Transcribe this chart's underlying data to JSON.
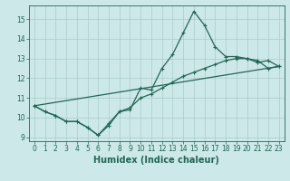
{
  "xlabel": "Humidex (Indice chaleur)",
  "bg_color": "#cce8e8",
  "grid_color": "#aacccc",
  "line_color": "#226655",
  "xlim": [
    -0.5,
    23.5
  ],
  "ylim": [
    8.8,
    15.7
  ],
  "yticks": [
    9,
    10,
    11,
    12,
    13,
    14,
    15
  ],
  "xticks": [
    0,
    1,
    2,
    3,
    4,
    5,
    6,
    7,
    8,
    9,
    10,
    11,
    12,
    13,
    14,
    15,
    16,
    17,
    18,
    19,
    20,
    21,
    22,
    23
  ],
  "series1_x": [
    0,
    1,
    2,
    3,
    4,
    5,
    6,
    7,
    8,
    9,
    10,
    11,
    12,
    13,
    14,
    15,
    16,
    17,
    18,
    19,
    20,
    21,
    22,
    23
  ],
  "series1_y": [
    10.6,
    10.3,
    10.1,
    9.8,
    9.8,
    9.5,
    9.1,
    9.6,
    10.3,
    10.4,
    11.5,
    11.4,
    12.5,
    13.2,
    14.3,
    15.4,
    14.7,
    13.6,
    13.1,
    13.1,
    13.0,
    12.8,
    12.9,
    12.6
  ],
  "series2_x": [
    0,
    1,
    2,
    3,
    4,
    5,
    6,
    7,
    8,
    9,
    10,
    11,
    12,
    13,
    14,
    15,
    16,
    17,
    18,
    19,
    20,
    21,
    22,
    23
  ],
  "series2_y": [
    10.6,
    10.3,
    10.1,
    9.8,
    9.8,
    9.5,
    9.1,
    9.7,
    10.3,
    10.5,
    11.0,
    11.2,
    11.5,
    11.8,
    12.1,
    12.3,
    12.5,
    12.7,
    12.9,
    13.0,
    13.0,
    12.9,
    12.5,
    12.6
  ],
  "series3_x": [
    0,
    23
  ],
  "series3_y": [
    10.6,
    12.6
  ],
  "tick_fontsize": 5.5,
  "xlabel_fontsize": 7
}
